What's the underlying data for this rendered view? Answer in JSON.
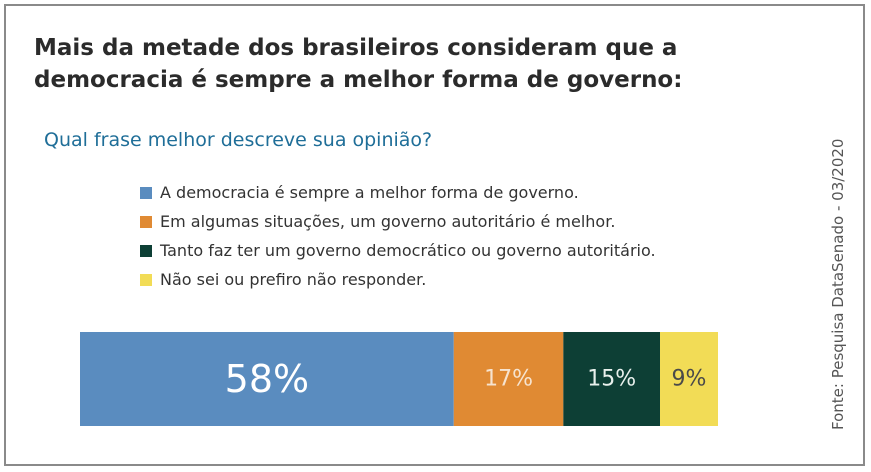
{
  "title": "Mais da metade dos brasileiros consideram que a democracia é sempre a melhor forma de governo:",
  "question": "Qual frase melhor descreve sua opinião?",
  "source": "Fonte: Pesquisa DataSenado - 03/2020",
  "chart_data": {
    "type": "bar",
    "orientation": "horizontal",
    "stacked": true,
    "categories": [
      ""
    ],
    "series": [
      {
        "name": "A democracia é sempre a melhor forma de governo.",
        "values": [
          58
        ],
        "label": "58%",
        "color": "#5a8cbf",
        "label_color": "#ffffff"
      },
      {
        "name": "Em algumas situações, um governo autoritário é melhor.",
        "values": [
          17
        ],
        "label": "17%",
        "color": "#e08a33",
        "label_color": "#f6e3cf"
      },
      {
        "name": "Tanto faz ter um governo democrático ou governo autoritário.",
        "values": [
          15
        ],
        "label": "15%",
        "color": "#0d3f35",
        "label_color": "#e8f0ec"
      },
      {
        "name": "Não sei ou prefiro não responder.",
        "values": [
          9
        ],
        "label": "9%",
        "color": "#f2dc56",
        "label_color": "#4a4a4a"
      }
    ],
    "xlim": [
      0,
      99
    ],
    "legend_position": "top-left",
    "grid": false
  }
}
